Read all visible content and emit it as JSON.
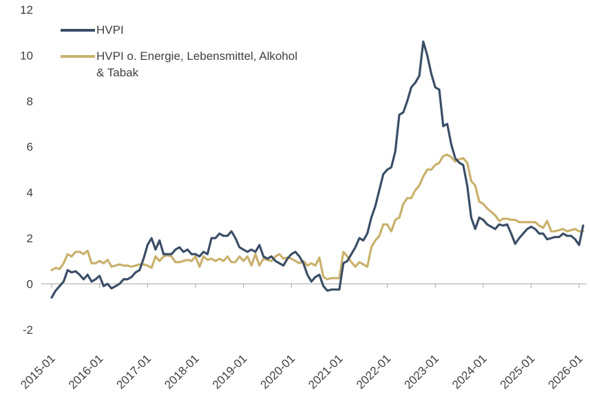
{
  "chart_data": {
    "type": "line",
    "categories": [
      "2015-01",
      null,
      null,
      null,
      null,
      null,
      null,
      null,
      null,
      null,
      null,
      null,
      "2016-01",
      null,
      null,
      null,
      null,
      null,
      null,
      null,
      null,
      null,
      null,
      null,
      "2017-01",
      null,
      null,
      null,
      null,
      null,
      null,
      null,
      null,
      null,
      null,
      null,
      "2018-01",
      null,
      null,
      null,
      null,
      null,
      null,
      null,
      null,
      null,
      null,
      null,
      "2019-01",
      null,
      null,
      null,
      null,
      null,
      null,
      null,
      null,
      null,
      null,
      null,
      "2020-01",
      null,
      null,
      null,
      null,
      null,
      null,
      null,
      null,
      null,
      null,
      null,
      "2021-01",
      null,
      null,
      null,
      null,
      null,
      null,
      null,
      null,
      null,
      null,
      null,
      "2022-01",
      null,
      null,
      null,
      null,
      null,
      null,
      null,
      null,
      null,
      null,
      null,
      "2023-01",
      null,
      null,
      null,
      null,
      null,
      null,
      null,
      null,
      null,
      null,
      null,
      "2024-01",
      null,
      null,
      null,
      null,
      null,
      null,
      null,
      null,
      null,
      null,
      null,
      "2025-01",
      null,
      null,
      null,
      null,
      null,
      null,
      null,
      null,
      null,
      null,
      null,
      "2026-01",
      null
    ],
    "series": [
      {
        "name": "HVPI",
        "color": "#3b4e67",
        "values": [
          -0.6,
          -0.3,
          -0.1,
          0.1,
          0.6,
          0.5,
          0.55,
          0.4,
          0.2,
          0.4,
          0.1,
          0.2,
          0.35,
          -0.1,
          0.0,
          -0.2,
          -0.1,
          0.0,
          0.2,
          0.2,
          0.3,
          0.5,
          0.6,
          1.1,
          1.7,
          2.0,
          1.5,
          1.9,
          1.3,
          1.3,
          1.3,
          1.5,
          1.6,
          1.4,
          1.5,
          1.3,
          1.3,
          1.2,
          1.4,
          1.3,
          2.0,
          2.0,
          2.2,
          2.1,
          2.1,
          2.3,
          2.0,
          1.6,
          1.5,
          1.4,
          1.5,
          1.4,
          1.7,
          1.2,
          1.1,
          1.2,
          1.0,
          0.9,
          0.8,
          1.1,
          1.3,
          1.4,
          1.2,
          0.9,
          0.4,
          0.1,
          0.3,
          0.4,
          -0.1,
          -0.3,
          -0.25,
          -0.25,
          -0.25,
          0.9,
          1.0,
          1.3,
          1.6,
          2.0,
          1.9,
          2.2,
          2.9,
          3.4,
          4.1,
          4.8,
          5.0,
          5.1,
          5.8,
          7.4,
          7.5,
          8.0,
          8.6,
          8.8,
          9.1,
          10.6,
          10.0,
          9.2,
          8.6,
          8.5,
          6.9,
          7.0,
          6.1,
          5.5,
          5.3,
          5.2,
          4.3,
          2.9,
          2.4,
          2.9,
          2.8,
          2.6,
          2.5,
          2.4,
          2.6,
          2.55,
          2.6,
          2.2,
          1.75,
          2.0,
          2.2,
          2.4,
          2.5,
          2.4,
          2.2,
          2.2,
          1.95,
          2.0,
          2.05,
          2.05,
          2.2,
          2.1,
          2.1,
          1.95,
          1.7,
          2.55
        ]
      },
      {
        "name": "HVPI o. Energie, Lebensmittel, Alkohol & Tabak",
        "color": "#c9b16b",
        "values": [
          0.6,
          0.7,
          0.65,
          0.9,
          1.3,
          1.2,
          1.4,
          1.4,
          1.3,
          1.45,
          0.9,
          0.9,
          1.0,
          0.9,
          1.05,
          0.75,
          0.8,
          0.85,
          0.8,
          0.8,
          0.75,
          0.8,
          0.85,
          0.85,
          0.8,
          0.7,
          1.2,
          1.0,
          1.2,
          1.25,
          1.2,
          0.95,
          0.95,
          1.0,
          1.05,
          1.0,
          1.2,
          0.75,
          1.2,
          1.05,
          1.1,
          1.0,
          1.1,
          1.0,
          1.2,
          0.95,
          0.95,
          1.2,
          1.0,
          1.2,
          0.8,
          1.3,
          0.8,
          1.1,
          1.05,
          1.0,
          1.2,
          1.3,
          1.1,
          1.15,
          1.1,
          1.0,
          0.9,
          1.0,
          0.8,
          0.9,
          0.8,
          1.15,
          0.3,
          0.2,
          0.25,
          0.25,
          0.25,
          1.4,
          1.2,
          0.95,
          0.75,
          0.95,
          0.85,
          0.75,
          1.6,
          1.9,
          2.1,
          2.6,
          2.6,
          2.3,
          2.8,
          2.9,
          3.5,
          3.75,
          3.75,
          4.1,
          4.3,
          4.7,
          5.0,
          5.0,
          5.2,
          5.3,
          5.6,
          5.65,
          5.55,
          5.35,
          5.45,
          5.5,
          5.3,
          4.5,
          4.3,
          3.6,
          3.5,
          3.3,
          3.15,
          3.0,
          2.75,
          2.85,
          2.85,
          2.8,
          2.8,
          2.7,
          2.7,
          2.7,
          2.7,
          2.7,
          2.55,
          2.45,
          2.75,
          2.3,
          2.3,
          2.35,
          2.4,
          2.3,
          2.35,
          2.4,
          2.3,
          2.3
        ]
      }
    ],
    "ylim": [
      -3,
      12
    ],
    "yticks": [
      -2,
      0,
      2,
      4,
      6,
      8,
      10,
      12
    ],
    "grid": false,
    "legend": "upper left"
  }
}
